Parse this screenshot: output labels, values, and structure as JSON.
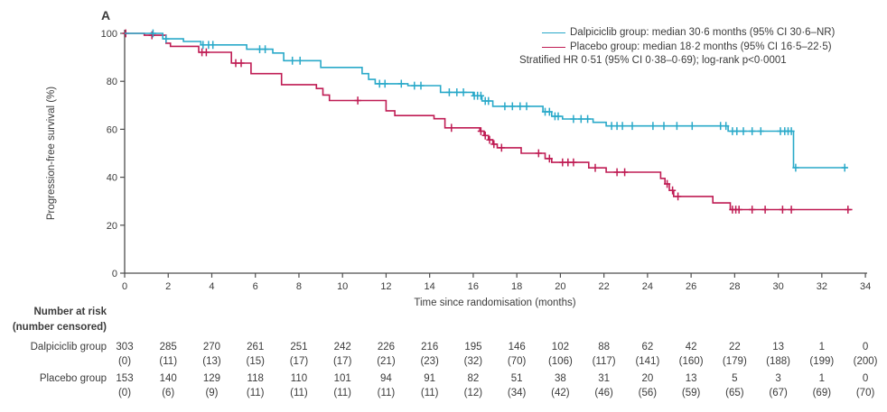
{
  "panel_label": "A",
  "colors": {
    "text": "#3b3b3b",
    "axis": "#4d4d4d",
    "dalpiciclib": "#29a9c9",
    "placebo": "#bf1b53"
  },
  "chart_data": {
    "type": "line",
    "subtype": "kaplan-meier-step",
    "title": "A",
    "xlabel": "Time since randomisation (months)",
    "ylabel": "Progression-free survival (%)",
    "xlim": [
      0,
      34
    ],
    "ylim": [
      0,
      100
    ],
    "xticks": [
      0,
      2,
      4,
      6,
      8,
      10,
      12,
      14,
      16,
      18,
      20,
      22,
      24,
      26,
      28,
      30,
      32,
      34
    ],
    "yticks": [
      0,
      20,
      40,
      60,
      80,
      100
    ],
    "grid": false,
    "legend_position": "top-right",
    "series": [
      {
        "name": "Dalpiciclib group",
        "color": "#29a9c9",
        "steps": [
          [
            0,
            100
          ],
          [
            1.75,
            97.7
          ],
          [
            2.7,
            96.6
          ],
          [
            3.5,
            95.2
          ],
          [
            5.6,
            93.4
          ],
          [
            6.8,
            91.8
          ],
          [
            7.3,
            88.6
          ],
          [
            9.0,
            85.8
          ],
          [
            10.9,
            83.2
          ],
          [
            11.2,
            80.8
          ],
          [
            11.5,
            79.0
          ],
          [
            13.0,
            78.2
          ],
          [
            14.5,
            75.4
          ],
          [
            16.0,
            74.0
          ],
          [
            16.4,
            71.8
          ],
          [
            16.9,
            69.6
          ],
          [
            19.2,
            67.3
          ],
          [
            19.6,
            65.4
          ],
          [
            20.1,
            64.3
          ],
          [
            21.5,
            62.9
          ],
          [
            22.1,
            61.4
          ],
          [
            27.7,
            59.2
          ],
          [
            30.7,
            44.0
          ],
          [
            33.2,
            44.0
          ]
        ],
        "censor_times": [
          1.3,
          1.9,
          3.6,
          3.85,
          4.05,
          6.2,
          6.45,
          7.7,
          8.05,
          11.7,
          11.95,
          12.7,
          13.3,
          13.6,
          14.9,
          15.25,
          15.55,
          16.05,
          16.2,
          16.35,
          16.55,
          16.7,
          17.45,
          17.8,
          18.15,
          18.45,
          19.3,
          19.5,
          19.75,
          19.9,
          20.6,
          20.95,
          21.25,
          22.35,
          22.6,
          22.85,
          23.3,
          24.25,
          24.75,
          25.35,
          26.05,
          27.35,
          27.6,
          27.9,
          28.1,
          28.4,
          28.8,
          29.2,
          30.1,
          30.3,
          30.45,
          30.6,
          30.8,
          33.05
        ]
      },
      {
        "name": "Placebo group",
        "color": "#bf1b53",
        "steps": [
          [
            0,
            100
          ],
          [
            0.9,
            99.2
          ],
          [
            1.9,
            95.9
          ],
          [
            2.1,
            94.6
          ],
          [
            3.4,
            92.1
          ],
          [
            4.9,
            87.6
          ],
          [
            5.8,
            83.2
          ],
          [
            7.2,
            78.6
          ],
          [
            8.8,
            77.0
          ],
          [
            9.1,
            74.3
          ],
          [
            9.4,
            72.0
          ],
          [
            12.0,
            67.7
          ],
          [
            12.4,
            65.7
          ],
          [
            14.2,
            64.4
          ],
          [
            14.7,
            60.6
          ],
          [
            16.3,
            59.2
          ],
          [
            16.5,
            57.4
          ],
          [
            16.7,
            55.6
          ],
          [
            16.9,
            53.8
          ],
          [
            17.1,
            52.3
          ],
          [
            18.2,
            50.0
          ],
          [
            19.3,
            47.8
          ],
          [
            19.6,
            46.2
          ],
          [
            21.3,
            43.9
          ],
          [
            22.1,
            42.1
          ],
          [
            24.6,
            39.5
          ],
          [
            24.8,
            37.2
          ],
          [
            25.0,
            34.5
          ],
          [
            25.2,
            32.0
          ],
          [
            27.0,
            29.3
          ],
          [
            27.8,
            26.5
          ],
          [
            33.4,
            26.5
          ]
        ],
        "censor_times": [
          0.05,
          1.25,
          3.55,
          3.75,
          5.1,
          5.35,
          10.7,
          15.0,
          16.35,
          16.55,
          16.75,
          16.95,
          17.3,
          19.0,
          19.5,
          20.1,
          20.35,
          20.6,
          21.6,
          22.6,
          22.95,
          24.9,
          25.15,
          25.4,
          27.9,
          28.05,
          28.2,
          28.8,
          29.4,
          30.2,
          30.6,
          33.2
        ]
      }
    ]
  },
  "legend": {
    "entries": [
      {
        "color": "#29a9c9",
        "label": "Dalpiciclib group: median 30·6 months (95% CI 30·6–NR)"
      },
      {
        "color": "#bf1b53",
        "label": "Placebo group: median 18·2 months (95% CI 16·5–22·5)"
      }
    ],
    "note": "Stratified HR 0·51 (95% CI 0·38–0·69); log-rank p<0·0001"
  },
  "risk_table": {
    "title_line1": "Number at risk",
    "title_line2": "(number censored)",
    "rows": [
      {
        "label": "Dalpiciclib group",
        "at_risk": [
          "303",
          "285",
          "270",
          "261",
          "251",
          "242",
          "226",
          "216",
          "195",
          "146",
          "102",
          "88",
          "62",
          "42",
          "22",
          "13",
          "1",
          "0"
        ],
        "censored": [
          "(0)",
          "(11)",
          "(13)",
          "(15)",
          "(17)",
          "(17)",
          "(21)",
          "(23)",
          "(32)",
          "(70)",
          "(106)",
          "(117)",
          "(141)",
          "(160)",
          "(179)",
          "(188)",
          "(199)",
          "(200)"
        ]
      },
      {
        "label": "Placebo group",
        "at_risk": [
          "153",
          "140",
          "129",
          "118",
          "110",
          "101",
          "94",
          "91",
          "82",
          "51",
          "38",
          "31",
          "20",
          "13",
          "5",
          "3",
          "1",
          "0"
        ],
        "censored": [
          "(0)",
          "(6)",
          "(9)",
          "(11)",
          "(11)",
          "(11)",
          "(11)",
          "(11)",
          "(12)",
          "(34)",
          "(42)",
          "(46)",
          "(56)",
          "(59)",
          "(65)",
          "(67)",
          "(69)",
          "(70)"
        ]
      }
    ]
  }
}
